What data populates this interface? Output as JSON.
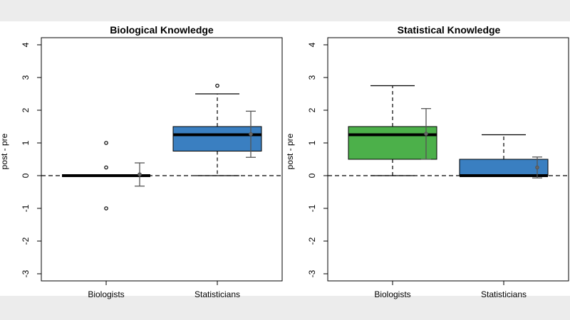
{
  "chart_data": [
    {
      "type": "box",
      "title": "Biological Knowledge",
      "xlabel": "",
      "ylabel": "post - pre",
      "ylim": [
        -3,
        4
      ],
      "yticks": [
        "-3",
        "-2",
        "-1",
        "0",
        "1",
        "2",
        "3",
        "4"
      ],
      "reference_line": 0,
      "categories": [
        "Biologists",
        "Statisticians"
      ],
      "boxes": [
        {
          "category": "Biologists",
          "color": "#000000",
          "min": 0,
          "q1": 0,
          "median": 0,
          "q3": 0,
          "max": 0,
          "outliers": [
            1,
            0.25,
            -1
          ],
          "mean": 0.04,
          "mean_low": -0.32,
          "mean_high": 0.39
        },
        {
          "category": "Statisticians",
          "color": "#3a7fc1",
          "min": 0,
          "q1": 0.75,
          "median": 1.25,
          "q3": 1.5,
          "max": 2.5,
          "outliers": [
            2.75
          ],
          "mean": 1.27,
          "mean_low": 0.56,
          "mean_high": 1.97
        }
      ]
    },
    {
      "type": "box",
      "title": "Statistical Knowledge",
      "xlabel": "",
      "ylabel": "post - pre",
      "ylim": [
        -3,
        4
      ],
      "yticks": [
        "-3",
        "-2",
        "-1",
        "0",
        "1",
        "2",
        "3",
        "4"
      ],
      "reference_line": 0,
      "categories": [
        "Biologists",
        "Statisticians"
      ],
      "boxes": [
        {
          "category": "Biologists",
          "color": "#4cb04a",
          "min": 0,
          "q1": 0.5,
          "median": 1.25,
          "q3": 1.5,
          "max": 2.75,
          "outliers": [],
          "mean": 1.28,
          "mean_low": 0.5,
          "mean_high": 2.05
        },
        {
          "category": "Statisticians",
          "color": "#3a7fc1",
          "min": 0,
          "q1": 0,
          "median": 0,
          "q3": 0.5,
          "max": 1.25,
          "outliers": [],
          "mean": 0.25,
          "mean_low": -0.07,
          "mean_high": 0.57
        }
      ]
    }
  ]
}
